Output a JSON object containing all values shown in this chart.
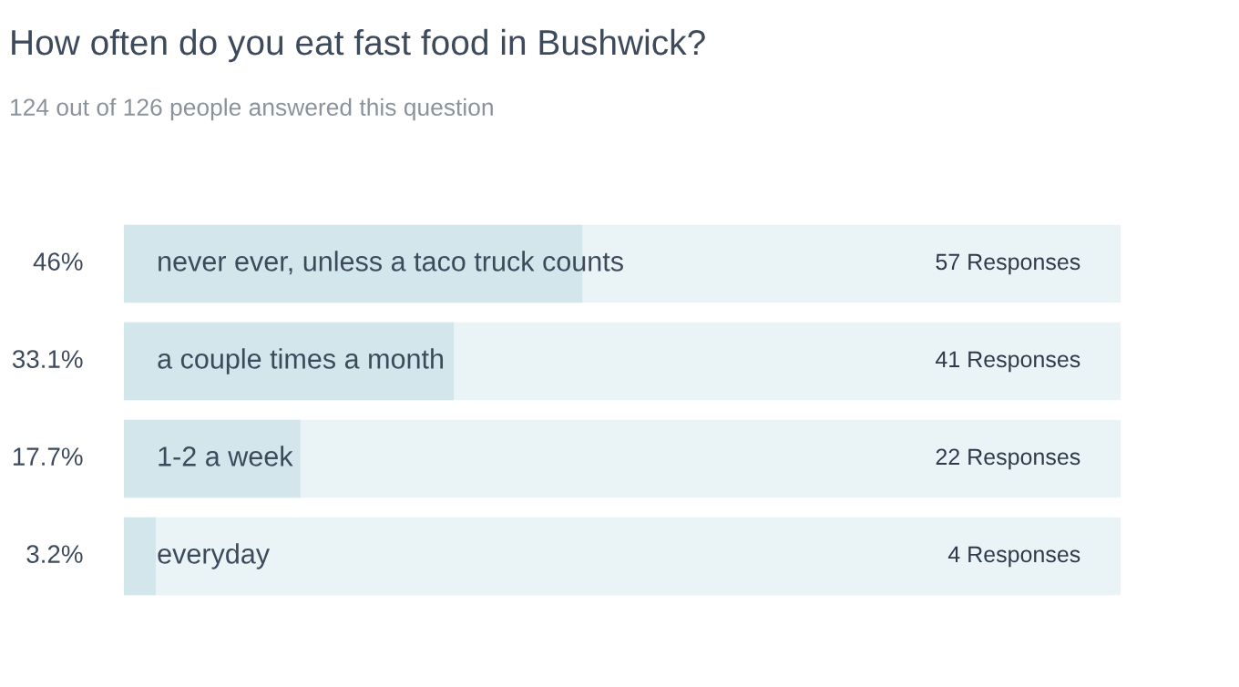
{
  "chart_data": {
    "type": "bar",
    "orientation": "horizontal",
    "title": "How often do you eat fast food in Bushwick?",
    "subtitle": "124 out of 126 people answered this question",
    "categories": [
      "never ever, unless a taco truck counts",
      "a couple times a month",
      "1-2 a week",
      "everyday"
    ],
    "values": [
      46,
      33.1,
      17.7,
      3.2
    ],
    "value_labels": [
      "46%",
      "33.1%",
      "17.7%",
      "3.2%"
    ],
    "annotations": [
      "57 Responses",
      "41 Responses",
      "22 Responses",
      "4 Responses"
    ],
    "color": "#d2e6eb",
    "xlim": [
      0,
      100
    ]
  }
}
